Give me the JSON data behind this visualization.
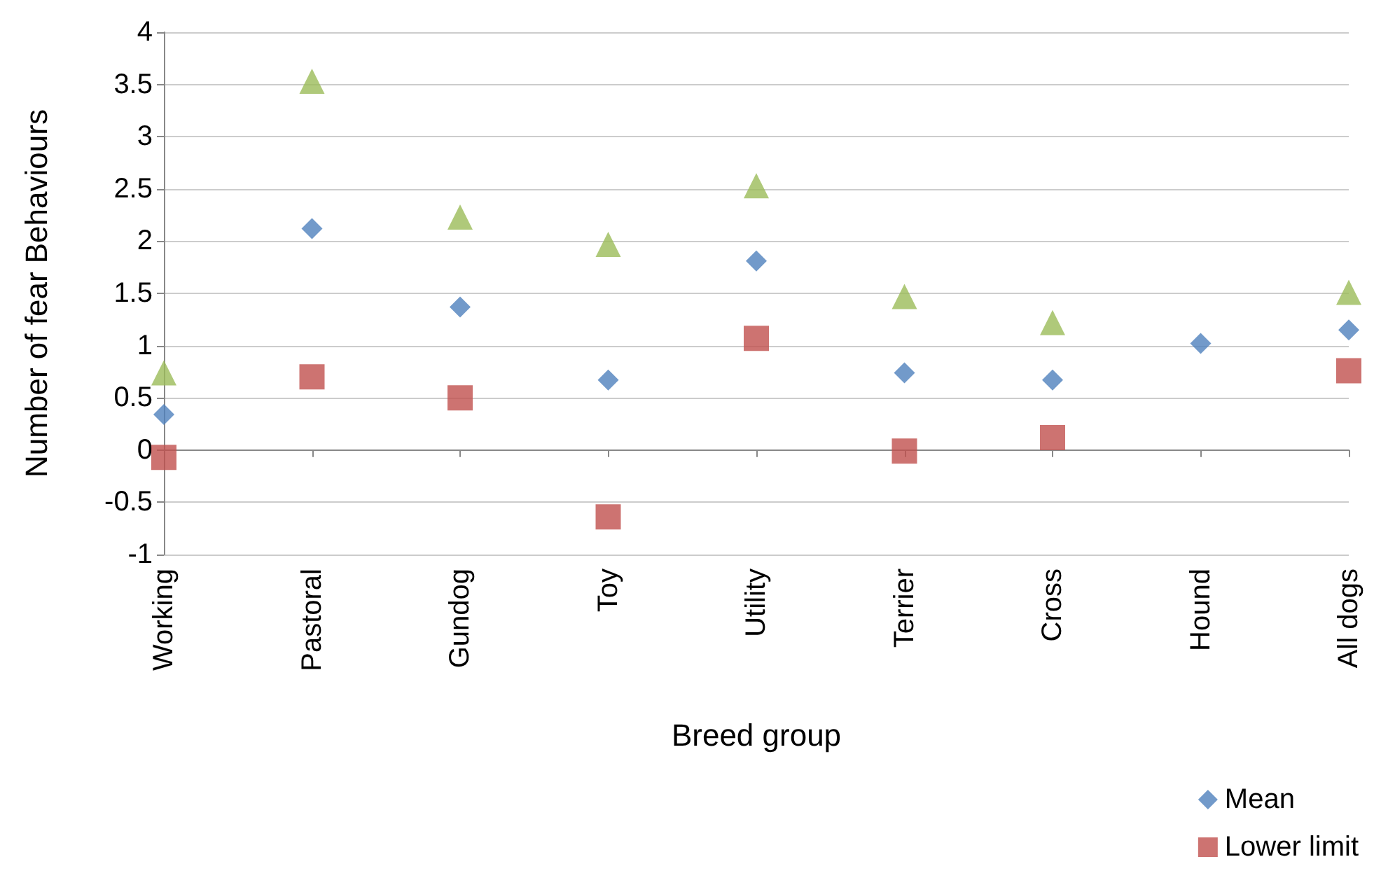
{
  "chart_data": {
    "type": "scatter",
    "xlabel": "Breed group",
    "ylabel": "Number of fear Behaviours",
    "categories": [
      "Working",
      "Pastoral",
      "Gundog",
      "Toy",
      "Utility",
      "Terrier",
      "Cross",
      "Hound",
      "All dogs"
    ],
    "series": [
      {
        "name": "Mean",
        "color": "#4f81bd",
        "marker": "diamond",
        "values": [
          0.34,
          2.12,
          1.37,
          0.67,
          1.81,
          0.74,
          0.67,
          1.02,
          1.15
        ]
      },
      {
        "name": "Lower limit",
        "color": "#c0504d",
        "marker": "square",
        "values": [
          -0.07,
          0.7,
          0.5,
          -0.64,
          1.07,
          -0.01,
          0.12,
          null,
          0.76
        ]
      },
      {
        "color": "#9bbb59",
        "marker": "triangle",
        "values": [
          0.74,
          3.53,
          2.23,
          1.97,
          2.53,
          1.47,
          1.22,
          null,
          1.51
        ]
      }
    ],
    "ylim": [
      -1,
      4
    ],
    "yticks": [
      -1,
      -0.5,
      0,
      0.5,
      1,
      1.5,
      2,
      2.5,
      3,
      3.5,
      4
    ],
    "grid": "y",
    "legend": "bottom right"
  }
}
